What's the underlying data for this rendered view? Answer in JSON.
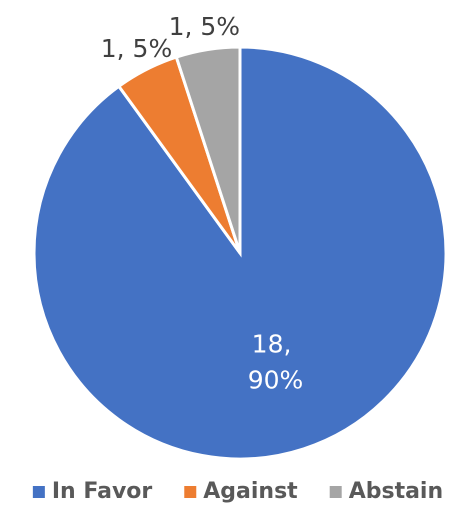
{
  "chart_data": {
    "type": "pie",
    "categories": [
      "In Favor",
      "Against",
      "Abstain"
    ],
    "values": [
      18,
      1,
      1
    ],
    "value_labels": [
      "18, 90%",
      "1, 5%",
      "1, 5%"
    ],
    "colors": [
      "#4472c4",
      "#ed7d31",
      "#a5a5a5"
    ],
    "legend": "bottom"
  }
}
